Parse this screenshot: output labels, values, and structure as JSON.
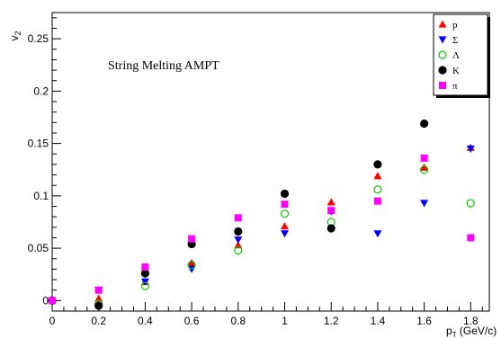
{
  "chart_data": {
    "type": "scatter",
    "annotation": "String Melting AMPT",
    "xlabel": "p",
    "xlabel_sub": "T",
    "xlabel_unit": " (GeV/c)",
    "ylabel": "v",
    "ylabel_sub": "2",
    "xlim": [
      0,
      1.88
    ],
    "ylim": [
      -0.01,
      0.275
    ],
    "xticks": [
      0,
      0.2,
      0.4,
      0.6,
      0.8,
      1,
      1.2,
      1.4,
      1.6,
      1.8
    ],
    "xtick_labels": [
      "0",
      "0.2",
      "0.4",
      "0.6",
      "0.8",
      "1",
      "1.2",
      "1.4",
      "1.6",
      "1.8"
    ],
    "yticks": [
      0,
      0.05,
      0.1,
      0.15,
      0.2,
      0.25
    ],
    "ytick_labels": [
      "0",
      "0.05",
      "0.1",
      "0.15",
      "0.2",
      "0.25"
    ],
    "grid": false,
    "legend_position": "top-right",
    "series": [
      {
        "name": "p",
        "marker": "triangle-up",
        "color": "#ff0000",
        "x": [
          0,
          0.2,
          0.4,
          0.6,
          0.8,
          1.0,
          1.2,
          1.4,
          1.6,
          1.8
        ],
        "y": [
          0.0,
          0.002,
          0.018,
          0.036,
          0.053,
          0.071,
          0.094,
          0.119,
          0.127,
          0.146
        ]
      },
      {
        "name": "Σ",
        "marker": "triangle-down",
        "color": "#0000ff",
        "x": [
          0,
          0.2,
          0.4,
          0.6,
          0.8,
          1.0,
          1.2,
          1.4,
          1.6,
          1.8
        ],
        "y": [
          0.0,
          0.01,
          0.018,
          0.03,
          0.058,
          0.064,
          0.085,
          0.064,
          0.093,
          0.145
        ]
      },
      {
        "name": "Λ",
        "marker": "open-circle",
        "color": "#00cc00",
        "x": [
          0,
          0.2,
          0.4,
          0.6,
          0.8,
          1.0,
          1.2,
          1.4,
          1.6,
          1.8
        ],
        "y": [
          0.0,
          -0.003,
          0.014,
          0.034,
          0.048,
          0.083,
          0.075,
          0.106,
          0.125,
          0.093
        ]
      },
      {
        "name": "K",
        "marker": "filled-circle",
        "color": "#000000",
        "x": [
          0,
          0.2,
          0.4,
          0.6,
          0.8,
          1.0,
          1.2,
          1.4,
          1.6,
          1.8
        ],
        "y": [
          0.0,
          -0.005,
          0.026,
          0.054,
          0.066,
          0.102,
          0.069,
          0.13,
          0.169,
          null
        ]
      },
      {
        "name": "π",
        "marker": "square",
        "color": "#ff00ff",
        "x": [
          0,
          0.2,
          0.4,
          0.6,
          0.8,
          1.0,
          1.2,
          1.4,
          1.6,
          1.8
        ],
        "y": [
          0.0,
          0.01,
          0.032,
          0.059,
          0.079,
          0.092,
          0.086,
          0.095,
          0.136,
          0.06
        ]
      }
    ]
  }
}
